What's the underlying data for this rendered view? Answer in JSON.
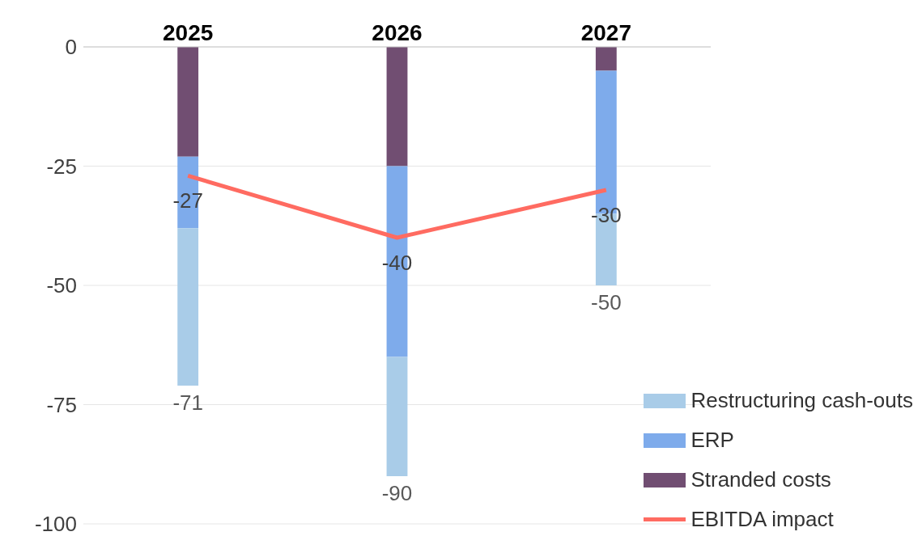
{
  "chart_data": {
    "type": "bar",
    "stacked": true,
    "categories": [
      "2025",
      "2026",
      "2027"
    ],
    "series": [
      {
        "name": "Stranded costs",
        "color": "#714e72",
        "values": [
          -23,
          -25,
          -5
        ]
      },
      {
        "name": "ERP",
        "color": "#7eabeb",
        "values": [
          -15,
          -40,
          -30
        ]
      },
      {
        "name": "Restructuring cash-outs",
        "color": "#a9cce8",
        "values": [
          -33,
          -25,
          -15
        ]
      },
      {
        "name": "EBITDA impact",
        "type": "line",
        "color": "#ff6b61",
        "values": [
          -27,
          -40,
          -30
        ],
        "value_labels": [
          "-27",
          "-40",
          "-30"
        ]
      }
    ],
    "totals": [
      "-71",
      "-90",
      "-50"
    ],
    "ylim": [
      -100,
      0
    ],
    "yticks": [
      0,
      -25,
      -50,
      -75,
      -100
    ],
    "grid": "y",
    "legend": "bottom right"
  }
}
